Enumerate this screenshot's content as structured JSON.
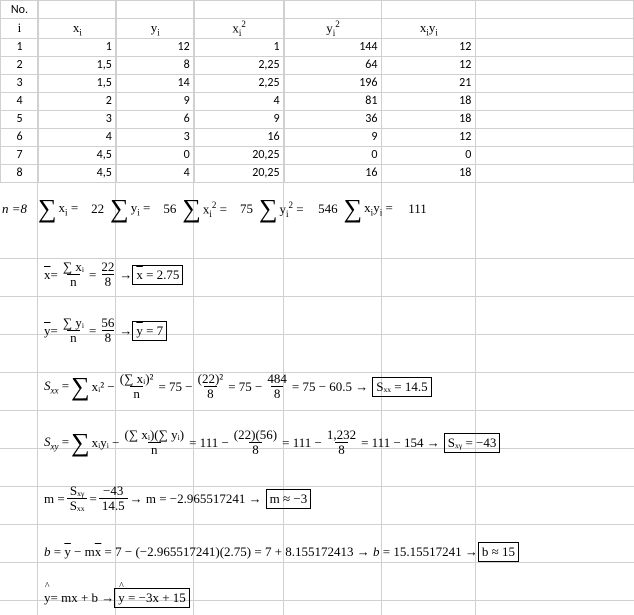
{
  "headers": {
    "no": "No.",
    "i": "i",
    "xi": "x",
    "yi": "y",
    "xi2": "x",
    "yi2": "y",
    "xiyi": "x"
  },
  "rows": [
    {
      "i": "1",
      "x": "1",
      "y": "12",
      "x2": "1",
      "y2": "144",
      "xy": "12"
    },
    {
      "i": "2",
      "x": "1,5",
      "y": "8",
      "x2": "2,25",
      "y2": "64",
      "xy": "12"
    },
    {
      "i": "3",
      "x": "1,5",
      "y": "14",
      "x2": "2,25",
      "y2": "196",
      "xy": "21"
    },
    {
      "i": "4",
      "x": "2",
      "y": "9",
      "x2": "4",
      "y2": "81",
      "xy": "18"
    },
    {
      "i": "5",
      "x": "3",
      "y": "6",
      "x2": "9",
      "y2": "36",
      "xy": "18"
    },
    {
      "i": "6",
      "x": "4",
      "y": "3",
      "x2": "16",
      "y2": "9",
      "xy": "12"
    },
    {
      "i": "7",
      "x": "4,5",
      "y": "0",
      "x2": "20,25",
      "y2": "0",
      "xy": "0"
    },
    {
      "i": "8",
      "x": "4,5",
      "y": "4",
      "x2": "20,25",
      "y2": "16",
      "xy": "18"
    }
  ],
  "sums": {
    "n_label": "n =8",
    "sx": "22",
    "sy": "56",
    "sx2": "75",
    "sy2": "546",
    "sxy": "111"
  },
  "formulas": {
    "xbar": {
      "lhs": "x̄ =",
      "n1": "∑ xᵢ",
      "d1": "n",
      "n2": "22",
      "d2": "8",
      "box": "x̄ = 2.75"
    },
    "ybar": {
      "lhs": "ȳ =",
      "n1": "∑ yᵢ",
      "d1": "n",
      "n2": "56",
      "d2": "8",
      "box": "ȳ = 7"
    },
    "sxx": {
      "pre": "Sₓₓ = ",
      "t1": "xᵢ² −",
      "fn1": "(∑ xᵢ)²",
      "fd1": "n",
      "mid1": "= 75 −",
      "fn2": "(22)²",
      "fd2": "8",
      "mid2": "= 75 −",
      "fn3": "484",
      "fd3": "8",
      "tail": "= 75 − 60.5 →",
      "box": "Sₓₓ = 14.5"
    },
    "sxy": {
      "pre": "Sₓᵧ = ",
      "t1": "xᵢyᵢ −",
      "fn1": "(∑ xᵢ)(∑ yᵢ)",
      "fd1": "n",
      "mid1": "= 111 −",
      "fn2": "(22)(56)",
      "fd2": "8",
      "mid2": "= 111 −",
      "fn3": "1,232",
      "fd3": "8",
      "tail": "= 111 − 154 →",
      "box": "Sₓᵧ = −43"
    },
    "m": {
      "pre": "m =",
      "fn1": "Sₓᵧ",
      "fd1": "Sₓₓ",
      "eq": "=",
      "fn2": "−43",
      "fd2": "14.5",
      "tail": "→ m = −2.965517241 →",
      "box": "m ≈ −3"
    },
    "b": {
      "text": "b = ȳ − mx̄ = 7 − (−2.965517241)(2.75) = 7 + 8.155172413 → b = 15.15517241 →",
      "box": "b ≈ 15"
    },
    "yhat": {
      "pre": "ŷ = mx + b →",
      "box": "ŷ = −3x + 15"
    }
  }
}
